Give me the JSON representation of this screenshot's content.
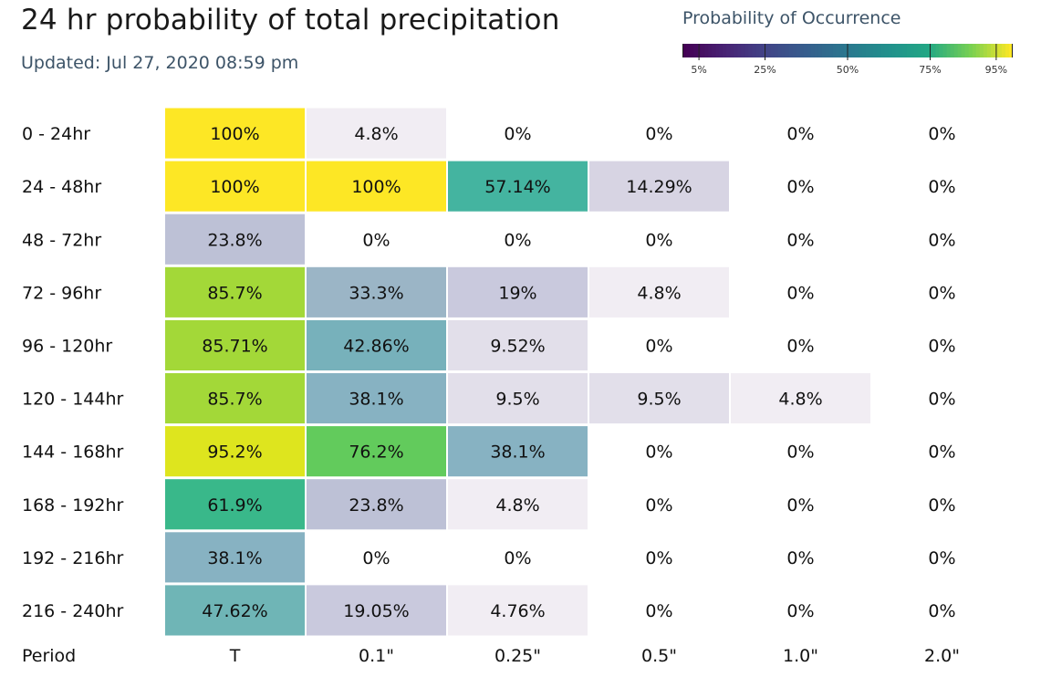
{
  "header": {
    "title": "24 hr probability of total precipitation",
    "updated": "Updated: Jul 27, 2020 08:59 pm"
  },
  "legend": {
    "title": "Probability of Occurrence",
    "ticks": [
      {
        "value": 5,
        "label": "5%"
      },
      {
        "value": 25,
        "label": "25%"
      },
      {
        "value": 50,
        "label": "50%"
      },
      {
        "value": 75,
        "label": "75%"
      },
      {
        "value": 95,
        "label": "95%"
      }
    ],
    "colormap": "viridis"
  },
  "chart_data": {
    "type": "heatmap",
    "title": "24 hr probability of total precipitation",
    "xlabel": "Period",
    "categories": [
      "T",
      "0.1\"",
      "0.25\"",
      "0.5\"",
      "1.0\"",
      "2.0\""
    ],
    "rows": [
      {
        "label": "0 - 24hr",
        "values": [
          100,
          4.8,
          0,
          0,
          0,
          0
        ],
        "labels": [
          "100%",
          "4.8%",
          "0%",
          "0%",
          "0%",
          "0%"
        ]
      },
      {
        "label": "24 - 48hr",
        "values": [
          100,
          100,
          57.14,
          14.29,
          0,
          0
        ],
        "labels": [
          "100%",
          "100%",
          "57.14%",
          "14.29%",
          "0%",
          "0%"
        ]
      },
      {
        "label": "48 - 72hr",
        "values": [
          23.8,
          0,
          0,
          0,
          0,
          0
        ],
        "labels": [
          "23.8%",
          "0%",
          "0%",
          "0%",
          "0%",
          "0%"
        ]
      },
      {
        "label": "72 - 96hr",
        "values": [
          85.7,
          33.3,
          19,
          4.8,
          0,
          0
        ],
        "labels": [
          "85.7%",
          "33.3%",
          "19%",
          "4.8%",
          "0%",
          "0%"
        ]
      },
      {
        "label": "96 - 120hr",
        "values": [
          85.71,
          42.86,
          9.52,
          0,
          0,
          0
        ],
        "labels": [
          "85.71%",
          "42.86%",
          "9.52%",
          "0%",
          "0%",
          "0%"
        ]
      },
      {
        "label": "120 - 144hr",
        "values": [
          85.7,
          38.1,
          9.5,
          9.5,
          4.8,
          0
        ],
        "labels": [
          "85.7%",
          "38.1%",
          "9.5%",
          "9.5%",
          "4.8%",
          "0%"
        ]
      },
      {
        "label": "144 - 168hr",
        "values": [
          95.2,
          76.2,
          38.1,
          0,
          0,
          0
        ],
        "labels": [
          "95.2%",
          "76.2%",
          "38.1%",
          "0%",
          "0%",
          "0%"
        ]
      },
      {
        "label": "168 - 192hr",
        "values": [
          61.9,
          23.8,
          4.8,
          0,
          0,
          0
        ],
        "labels": [
          "61.9%",
          "23.8%",
          "4.8%",
          "0%",
          "0%",
          "0%"
        ]
      },
      {
        "label": "192 - 216hr",
        "values": [
          38.1,
          0,
          0,
          0,
          0,
          0
        ],
        "labels": [
          "38.1%",
          "0%",
          "0%",
          "0%",
          "0%",
          "0%"
        ]
      },
      {
        "label": "216 - 240hr",
        "values": [
          47.62,
          19.05,
          4.76,
          0,
          0,
          0
        ],
        "labels": [
          "47.62%",
          "19.05%",
          "4.76%",
          "0%",
          "0%",
          "0%"
        ]
      }
    ]
  }
}
